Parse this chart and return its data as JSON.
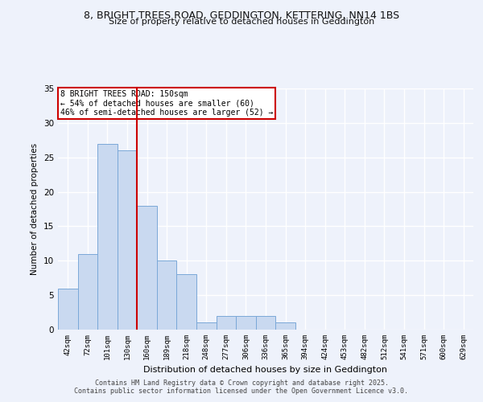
{
  "title1": "8, BRIGHT TREES ROAD, GEDDINGTON, KETTERING, NN14 1BS",
  "title2": "Size of property relative to detached houses in Geddington",
  "xlabel": "Distribution of detached houses by size in Geddington",
  "ylabel": "Number of detached properties",
  "bar_labels": [
    "42sqm",
    "72sqm",
    "101sqm",
    "130sqm",
    "160sqm",
    "189sqm",
    "218sqm",
    "248sqm",
    "277sqm",
    "306sqm",
    "336sqm",
    "365sqm",
    "394sqm",
    "424sqm",
    "453sqm",
    "482sqm",
    "512sqm",
    "541sqm",
    "571sqm",
    "600sqm",
    "629sqm"
  ],
  "bar_values": [
    6,
    11,
    27,
    26,
    18,
    10,
    8,
    1,
    2,
    2,
    2,
    1,
    0,
    0,
    0,
    0,
    0,
    0,
    0,
    0,
    0
  ],
  "bar_color": "#c9d9f0",
  "bar_edge_color": "#7aa8d8",
  "vline_x": 4.0,
  "vline_color": "#cc0000",
  "annotation_text": "8 BRIGHT TREES ROAD: 150sqm\n← 54% of detached houses are smaller (60)\n46% of semi-detached houses are larger (52) →",
  "annotation_box_color": "#cc0000",
  "ylim": [
    0,
    35
  ],
  "yticks": [
    0,
    5,
    10,
    15,
    20,
    25,
    30,
    35
  ],
  "footer1": "Contains HM Land Registry data © Crown copyright and database right 2025.",
  "footer2": "Contains public sector information licensed under the Open Government Licence v3.0.",
  "bg_color": "#eef2fb",
  "grid_color": "#ffffff"
}
